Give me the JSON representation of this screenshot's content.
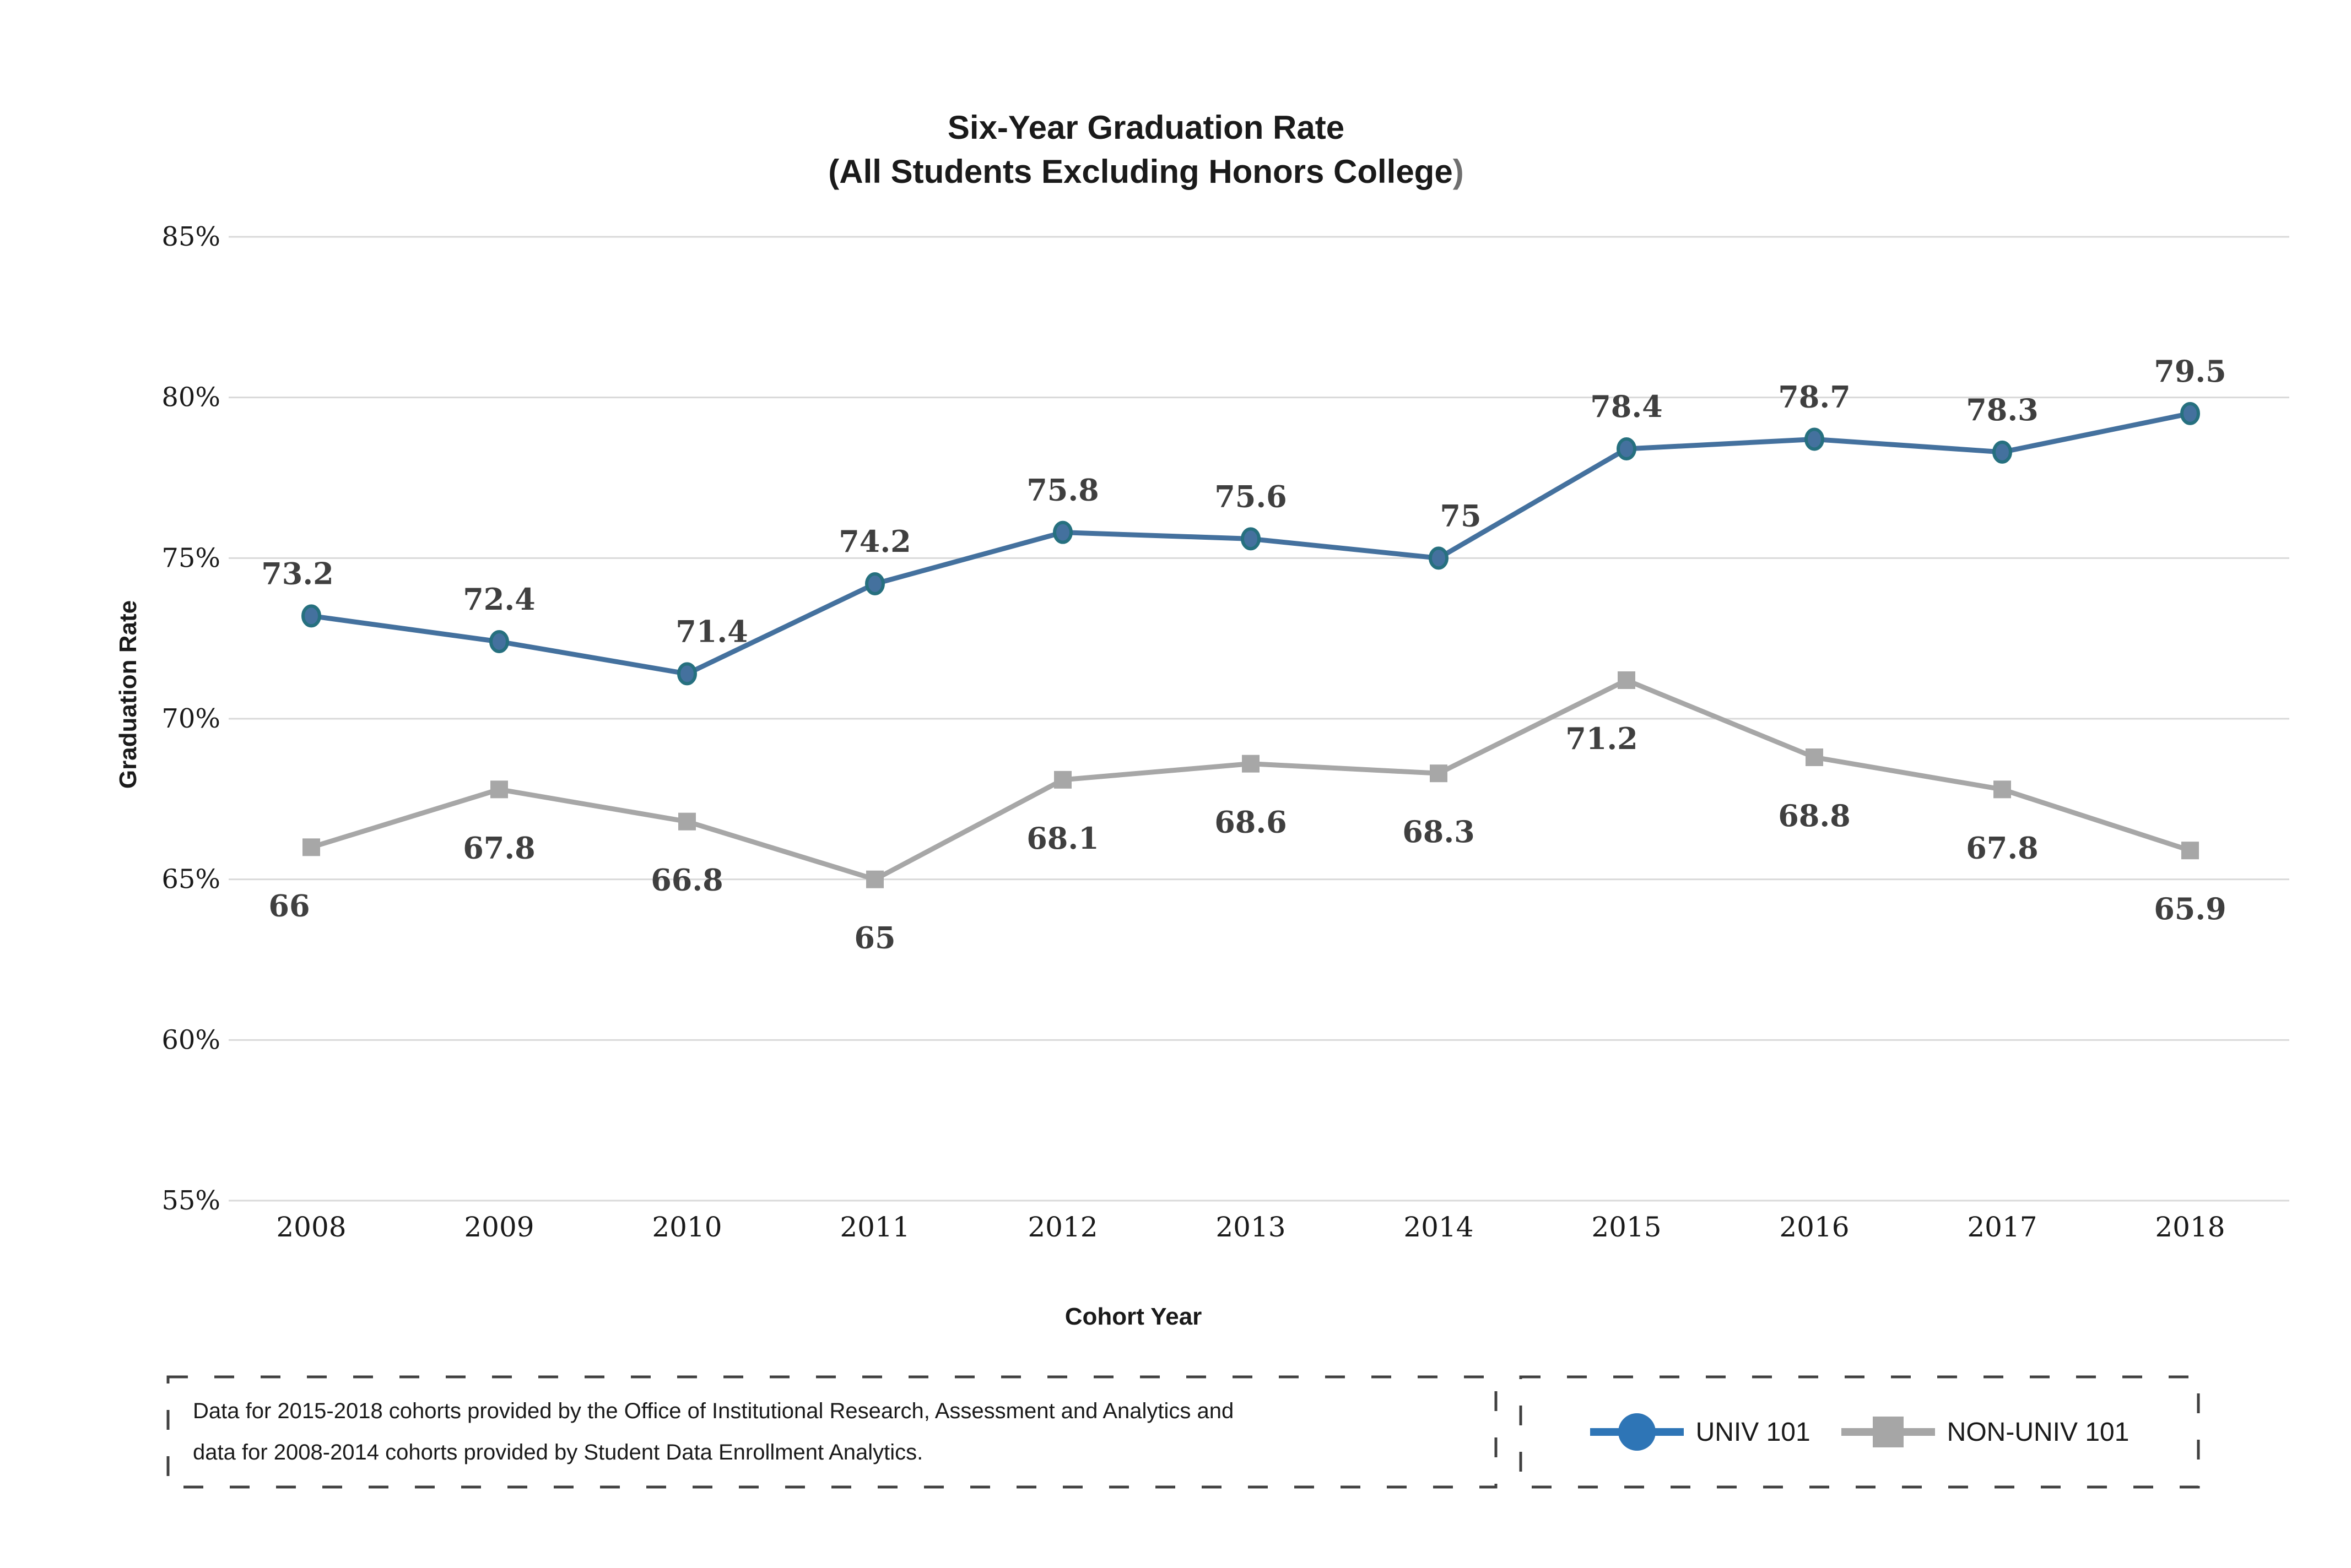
{
  "title": {
    "line1": "Six-Year Graduation Rate",
    "line2_main": "(All Students Excluding Honors College",
    "line2_paren": ")"
  },
  "axes": {
    "y_label": "Graduation Rate",
    "x_label": "Cohort Year"
  },
  "footnote": {
    "line1": "Data for 2015-2018 cohorts provided by the Office of Institutional Research, Assessment and Analytics and",
    "line2": "data for 2008-2014 cohorts provided by Student Data Enrollment Analytics."
  },
  "legend": [
    {
      "name": "UNIV 101",
      "marker": "circle",
      "color": "#2e75b6"
    },
    {
      "name": "NON-UNIV 101",
      "marker": "square",
      "color": "#a6a6a6"
    }
  ],
  "colors": {
    "background": "#ffffff",
    "gridline": "#d9d9d9",
    "tick_label": "#1a1a1a",
    "data_label": "#3f3f3f",
    "title_text": "#1a1a1a",
    "title_paren": "#6f6f6f",
    "box_border": "#404040",
    "univ_line": "#44719e",
    "univ_marker_fill": "#44719e",
    "univ_marker_stroke": "#26707f",
    "nonuniv_line": "#a7a7a7",
    "nonuniv_marker": "#a7a7a7",
    "legend_univ": "#2e75b6",
    "legend_nonuniv": "#a6a6a6"
  },
  "chart_data": {
    "type": "line",
    "title": "Six-Year Graduation Rate (All Students Excluding Honors College)",
    "xlabel": "Cohort Year",
    "ylabel": "Graduation Rate",
    "categories": [
      "2008",
      "2009",
      "2010",
      "2011",
      "2012",
      "2013",
      "2014",
      "2015",
      "2016",
      "2017",
      "2018"
    ],
    "series": [
      {
        "name": "UNIV 101",
        "marker": "circle",
        "color": "#44719e",
        "values": [
          73.2,
          72.4,
          71.4,
          74.2,
          75.8,
          75.6,
          75,
          78.4,
          78.7,
          78.3,
          79.5
        ]
      },
      {
        "name": "NON-UNIV 101",
        "marker": "square",
        "color": "#a7a7a7",
        "values": [
          66,
          67.8,
          66.8,
          65,
          68.1,
          68.6,
          68.3,
          71.2,
          68.8,
          67.8,
          65.9
        ]
      }
    ],
    "ylim": [
      55,
      85
    ],
    "ytick_step": 5,
    "ytick_format": "{}%",
    "grid": true,
    "legend_position": "bottom-right"
  }
}
